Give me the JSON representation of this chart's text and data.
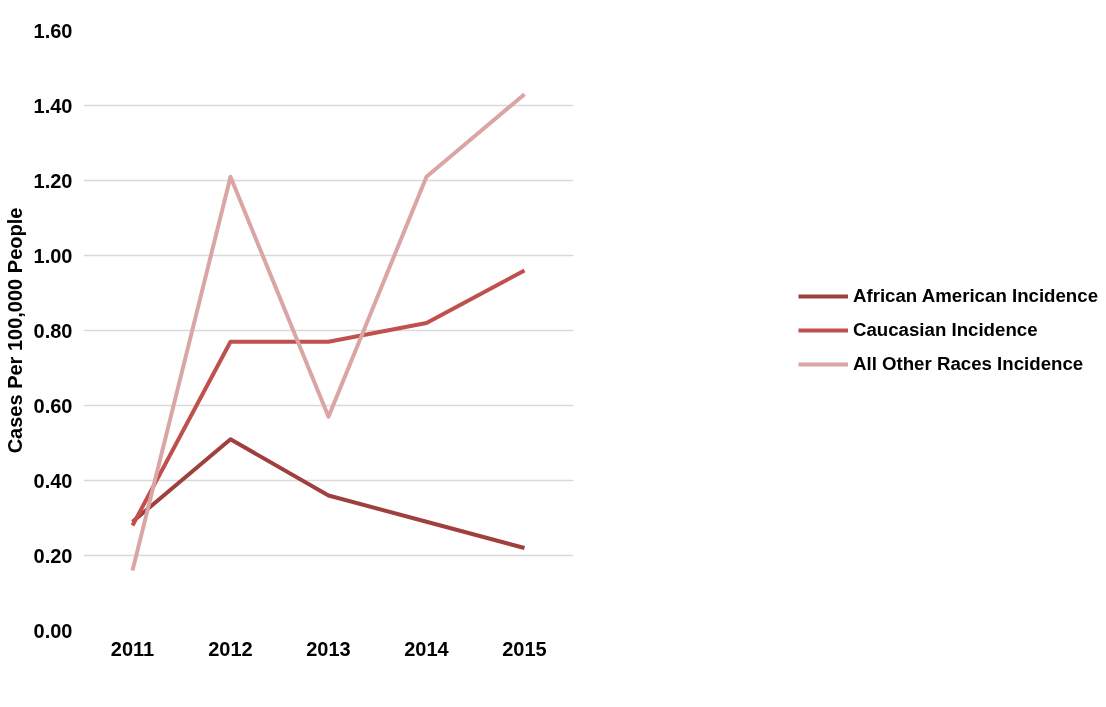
{
  "chart_data": {
    "type": "line",
    "ylabel": "Cases Per 100,000 People",
    "categories": [
      "2011",
      "2012",
      "2013",
      "2014",
      "2015"
    ],
    "series": [
      {
        "name": "African American Incidence",
        "color": "#a0403e",
        "values": [
          0.29,
          0.51,
          0.36,
          0.29,
          0.22
        ]
      },
      {
        "name": "Caucasian Incidence",
        "color": "#c0504d",
        "values": [
          0.28,
          0.77,
          0.77,
          0.82,
          0.96
        ]
      },
      {
        "name": "All Other Races Incidence",
        "color": "#d9a6a5",
        "values": [
          0.16,
          1.21,
          0.57,
          1.21,
          1.43
        ]
      }
    ],
    "ylim": [
      0,
      1.6
    ],
    "yticks": [
      {
        "value": 0,
        "label": "0.00"
      },
      {
        "value": 0.2,
        "label": "0.20"
      },
      {
        "value": 0.4,
        "label": "0.40"
      },
      {
        "value": 0.6,
        "label": "0.60"
      },
      {
        "value": 0.8,
        "label": "0.80"
      },
      {
        "value": 1.0,
        "label": "1.00"
      },
      {
        "value": 1.2,
        "label": "1.20"
      },
      {
        "value": 1.4,
        "label": "1.40"
      },
      {
        "value": 1.6,
        "label": "1.60"
      }
    ],
    "grid": "y",
    "legend": "right",
    "marker": "none",
    "line_style": "solid"
  }
}
